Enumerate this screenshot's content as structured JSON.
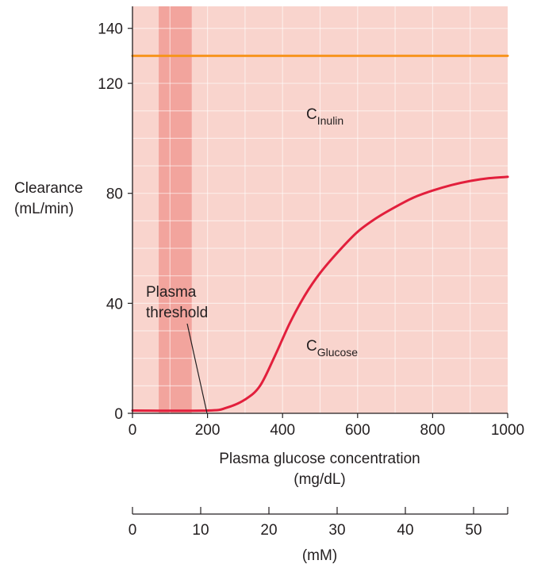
{
  "chart_data": {
    "type": "line",
    "ylabel_line1": "Clearance",
    "ylabel_line2": "(mL/min)",
    "xlabel_line1": "Plasma glucose concentration",
    "xlabel_line2": "(mg/dL)",
    "x2label": "(mM)",
    "xlim": [
      0,
      1000
    ],
    "ylim": [
      0,
      148
    ],
    "x_ticks": [
      0,
      200,
      400,
      600,
      800,
      1000
    ],
    "y_ticks": [
      0,
      40,
      80,
      120,
      140
    ],
    "x2_ticks": [
      0,
      10,
      20,
      30,
      40,
      50
    ],
    "x2_lim": [
      0,
      55
    ],
    "grid": true,
    "background_color": "#f9d4cd",
    "threshold_band": {
      "x_range": [
        70,
        158
      ],
      "color": "#f2a49d"
    },
    "annotation": {
      "line1": "Plasma",
      "line2": "threshold",
      "points_to": {
        "x": 200,
        "y": 1
      }
    },
    "series": [
      {
        "name_main": "C",
        "name_sub": "Inulin",
        "color": "#f7941d",
        "x": [
          0,
          1000
        ],
        "y": [
          130,
          130
        ]
      },
      {
        "name_main": "C",
        "name_sub": "Glucose",
        "color": "#e21f3c",
        "x": [
          0,
          200,
          250,
          300,
          340,
          380,
          420,
          460,
          500,
          550,
          600,
          650,
          700,
          750,
          800,
          850,
          900,
          950,
          1000
        ],
        "y": [
          1,
          1,
          2,
          5,
          10,
          21,
          33,
          43,
          51,
          59,
          66,
          71,
          75,
          78.5,
          81,
          83,
          84.5,
          85.5,
          86
        ]
      }
    ]
  }
}
